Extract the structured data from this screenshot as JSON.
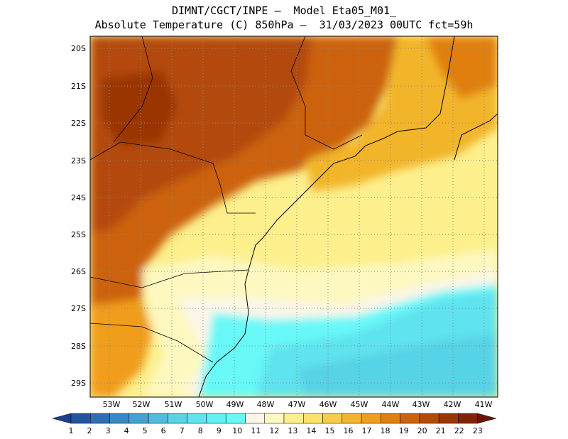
{
  "header": {
    "line1": "DIMNT/CGCT/INPE –  Model Eta05_M01_",
    "line2": "Absolute Temperature (C) 850hPa –  31/03/2023 00UTC fct=59h"
  },
  "axes": {
    "lat_labels": [
      "20S",
      "21S",
      "22S",
      "23S",
      "24S",
      "25S",
      "26S",
      "27S",
      "28S",
      "29S"
    ],
    "lon_labels": [
      "53W",
      "52W",
      "51W",
      "50W",
      "49W",
      "48W",
      "47W",
      "46W",
      "45W",
      "44W",
      "43W",
      "42W",
      "41W"
    ],
    "gridlines": "dotted"
  },
  "colorbar": {
    "labels": [
      "1",
      "2",
      "3",
      "4",
      "5",
      "6",
      "7",
      "8",
      "9",
      "10",
      "11",
      "12",
      "13",
      "14",
      "15",
      "16",
      "17",
      "18",
      "19",
      "20",
      "21",
      "22",
      "23"
    ],
    "colors": [
      "#1f3f8c",
      "#23559f",
      "#2f6fb1",
      "#3a88c2",
      "#45a2d0",
      "#4fbcdc",
      "#57d3e6",
      "#5fe3ee",
      "#5ff2f5",
      "#68f8f8",
      "#fbf6e8",
      "#fdf8c0",
      "#fcef8c",
      "#fbe26a",
      "#f7cc48",
      "#f2b52c",
      "#f09d1e",
      "#e07f10",
      "#cc620a",
      "#b34a08",
      "#9a3606",
      "#7f2506",
      "#6a1506"
    ]
  },
  "map": {
    "ocean_cold": "#58e8ee",
    "coast_color": "#000000"
  }
}
